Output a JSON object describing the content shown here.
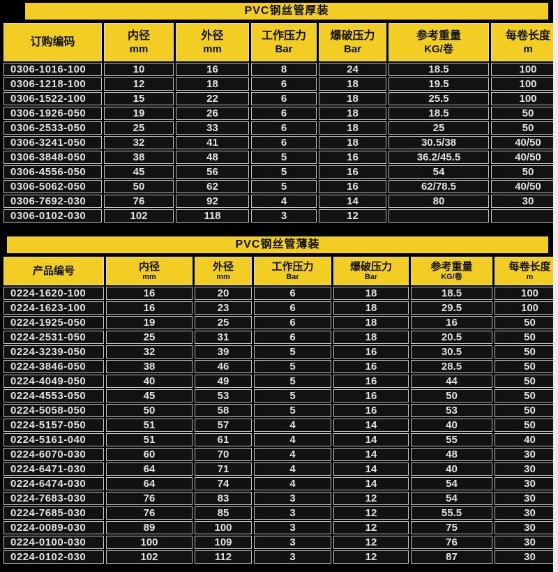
{
  "colors": {
    "yellow": "#f2ce24",
    "cell_bg": "#121212",
    "grid_line": "#c9c9c9",
    "data_text": "#e3e3e3",
    "right_strip": "#ececec",
    "page_bg": "#000000"
  },
  "tables": [
    {
      "title": "PVC钢丝管厚装",
      "columns": [
        {
          "line1": "订购编码",
          "line2": ""
        },
        {
          "line1": "内径",
          "line2": "mm"
        },
        {
          "line1": "外径",
          "line2": "mm"
        },
        {
          "line1": "工作压力",
          "line2": "Bar"
        },
        {
          "line1": "爆破压力",
          "line2": "Bar"
        },
        {
          "line1": "参考重量",
          "line2": "KG/卷"
        },
        {
          "line1": "每卷长度",
          "line2": "m"
        }
      ],
      "rows": [
        [
          "0306-1016-100",
          "10",
          "16",
          "8",
          "24",
          "18.5",
          "100"
        ],
        [
          "0306-1218-100",
          "12",
          "18",
          "6",
          "18",
          "19.5",
          "100"
        ],
        [
          "0306-1522-100",
          "15",
          "22",
          "6",
          "18",
          "25.5",
          "100"
        ],
        [
          "0306-1926-050",
          "19",
          "26",
          "6",
          "18",
          "18.5",
          "50"
        ],
        [
          "0306-2533-050",
          "25",
          "33",
          "6",
          "18",
          "25",
          "50"
        ],
        [
          "0306-3241-050",
          "32",
          "41",
          "6",
          "18",
          "30.5/38",
          "40/50"
        ],
        [
          "0306-3848-050",
          "38",
          "48",
          "5",
          "16",
          "36.2/45.5",
          "40/50"
        ],
        [
          "0306-4556-050",
          "45",
          "56",
          "5",
          "16",
          "54",
          "50"
        ],
        [
          "0306-5062-050",
          "50",
          "62",
          "5",
          "16",
          "62/78.5",
          "40/50"
        ],
        [
          "0306-7692-030",
          "76",
          "92",
          "4",
          "14",
          "80",
          "30"
        ],
        [
          "0306-0102-030",
          "102",
          "118",
          "3",
          "12",
          "",
          ""
        ]
      ]
    },
    {
      "title": "PVC钢丝管薄装",
      "columns": [
        {
          "line1": "产品编号",
          "line2": ""
        },
        {
          "line1": "内径",
          "line2": "mm"
        },
        {
          "line1": "外径",
          "line2": "mm"
        },
        {
          "line1": "工作压力",
          "line2": "Bar"
        },
        {
          "line1": "爆破压力",
          "line2": "Bar"
        },
        {
          "line1": "参考重量",
          "line2": "KG/卷"
        },
        {
          "line1": "每卷长度",
          "line2": "m"
        }
      ],
      "rows": [
        [
          "0224-1620-100",
          "16",
          "20",
          "6",
          "18",
          "18.5",
          "100"
        ],
        [
          "0224-1623-100",
          "16",
          "23",
          "6",
          "18",
          "29.5",
          "100"
        ],
        [
          "0224-1925-050",
          "19",
          "25",
          "6",
          "18",
          "16",
          "50"
        ],
        [
          "0224-2531-050",
          "25",
          "31",
          "6",
          "18",
          "20.5",
          "50"
        ],
        [
          "0224-3239-050",
          "32",
          "39",
          "5",
          "16",
          "30.5",
          "50"
        ],
        [
          "0224-3846-050",
          "38",
          "46",
          "5",
          "16",
          "28.5",
          "50"
        ],
        [
          "0224-4049-050",
          "40",
          "49",
          "5",
          "16",
          "44",
          "50"
        ],
        [
          "0224-4553-050",
          "45",
          "53",
          "5",
          "16",
          "50",
          "50"
        ],
        [
          "0224-5058-050",
          "50",
          "58",
          "5",
          "16",
          "53",
          "50"
        ],
        [
          "0224-5157-050",
          "51",
          "57",
          "4",
          "14",
          "40",
          "50"
        ],
        [
          "0224-5161-040",
          "51",
          "61",
          "4",
          "14",
          "55",
          "40"
        ],
        [
          "0224-6070-030",
          "60",
          "70",
          "4",
          "14",
          "48",
          "30"
        ],
        [
          "0224-6471-030",
          "64",
          "71",
          "4",
          "14",
          "40",
          "30"
        ],
        [
          "0224-6474-030",
          "64",
          "74",
          "4",
          "14",
          "54",
          "30"
        ],
        [
          "0224-7683-030",
          "76",
          "83",
          "3",
          "12",
          "54",
          "30"
        ],
        [
          "0224-7685-030",
          "76",
          "85",
          "3",
          "12",
          "55.5",
          "30"
        ],
        [
          "0224-0089-030",
          "89",
          "100",
          "3",
          "12",
          "75",
          "30"
        ],
        [
          "0224-0100-030",
          "100",
          "109",
          "3",
          "12",
          "76",
          "30"
        ],
        [
          "0224-0102-030",
          "102",
          "112",
          "3",
          "12",
          "87",
          "30"
        ]
      ]
    }
  ]
}
